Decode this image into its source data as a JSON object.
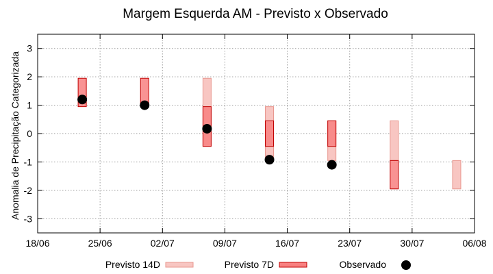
{
  "chart_data": {
    "type": "range-bar-with-points",
    "title": "Margem Esquerda AM - Previsto x Observado",
    "xlabel": "",
    "ylabel": "Anomalia de Precipitação Categorizada",
    "xlim": [
      "18/06",
      "06/08"
    ],
    "ylim": [
      -3.5,
      3.5
    ],
    "x_tick_labels": [
      "18/06",
      "25/06",
      "02/07",
      "09/07",
      "16/07",
      "23/07",
      "30/07",
      "06/08"
    ],
    "y_ticks": [
      3,
      2,
      1,
      0,
      -1,
      -2,
      -3
    ],
    "grid": true,
    "legend_position": "bottom",
    "series": [
      {
        "name": "Previsto 14D",
        "kind": "range",
        "color_fill": "#f8c6c2",
        "color_edge": "#e8968e",
        "data": [
          {
            "date": "07/07",
            "low": -0.45,
            "high": 1.95
          },
          {
            "date": "14/07",
            "low": -0.95,
            "high": 0.95
          },
          {
            "date": "21/07",
            "low": -0.95,
            "high": 0.45
          },
          {
            "date": "28/07",
            "low": -0.95,
            "high": 0.45
          },
          {
            "date": "04/08",
            "low": -1.95,
            "high": -0.95
          }
        ]
      },
      {
        "name": "Previsto 7D",
        "kind": "range",
        "color_fill": "#f88080",
        "color_edge": "#c00000",
        "data": [
          {
            "date": "23/06",
            "low": 0.95,
            "high": 1.95
          },
          {
            "date": "30/06",
            "low": 0.95,
            "high": 1.95
          },
          {
            "date": "07/07",
            "low": -0.45,
            "high": 0.95
          },
          {
            "date": "14/07",
            "low": -0.45,
            "high": 0.45
          },
          {
            "date": "21/07",
            "low": -0.45,
            "high": 0.45
          },
          {
            "date": "28/07",
            "low": -1.95,
            "high": -0.95
          }
        ]
      },
      {
        "name": "Observado",
        "kind": "point",
        "color": "#000000",
        "data": [
          {
            "date": "23/06",
            "y": 1.2
          },
          {
            "date": "30/06",
            "y": 1.0
          },
          {
            "date": "07/07",
            "y": 0.17
          },
          {
            "date": "14/07",
            "y": -0.92
          },
          {
            "date": "21/07",
            "y": -1.1
          }
        ]
      }
    ]
  }
}
